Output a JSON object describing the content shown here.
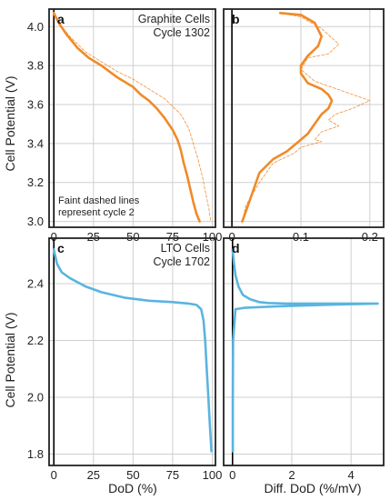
{
  "figure": {
    "ylabel_top": "Cell Potential (V)",
    "ylabel_bottom": "Cell Potential (V)",
    "xlabel_left": "DoD (%)",
    "xlabel_right": "Diff. DoD (%/mV)",
    "colors": {
      "graphite": "#f08a2a",
      "lto": "#5ab4e0",
      "grid": "#cfcfcf",
      "frame": "#222222"
    }
  },
  "chart_data": [
    {
      "panel": "a",
      "type": "line",
      "annotation_lines": [
        "Graphite Cells",
        "Cycle 1302"
      ],
      "note_lines": [
        "Faint dashed lines",
        "represent cycle 2"
      ],
      "xlim": [
        -3,
        102
      ],
      "ylim": [
        2.97,
        4.09
      ],
      "xticks": [
        0,
        25,
        50,
        75,
        100
      ],
      "yticks": [
        3.0,
        3.2,
        3.4,
        3.6,
        3.8,
        4.0
      ],
      "grid": true,
      "series": [
        {
          "style": "solid",
          "x": [
            0,
            3,
            8,
            15,
            22,
            30,
            40,
            50,
            55,
            60,
            65,
            70,
            75,
            78,
            80,
            82,
            84,
            86,
            88,
            90,
            92
          ],
          "y": [
            4.07,
            4.02,
            3.96,
            3.89,
            3.84,
            3.8,
            3.74,
            3.69,
            3.65,
            3.62,
            3.58,
            3.53,
            3.47,
            3.42,
            3.37,
            3.3,
            3.24,
            3.17,
            3.1,
            3.04,
            3.0
          ]
        },
        {
          "style": "dashed",
          "x": [
            0,
            5,
            10,
            20,
            30,
            40,
            50,
            60,
            70,
            80,
            85,
            88,
            91,
            94,
            96,
            98,
            99
          ],
          "y": [
            4.07,
            4.0,
            3.95,
            3.87,
            3.82,
            3.77,
            3.73,
            3.68,
            3.63,
            3.55,
            3.48,
            3.4,
            3.32,
            3.22,
            3.14,
            3.06,
            3.0
          ]
        }
      ]
    },
    {
      "panel": "b",
      "type": "line",
      "xlim": [
        -0.012,
        0.22
      ],
      "ylim": [
        2.97,
        4.09
      ],
      "xticks": [
        0,
        0.1,
        0.2
      ],
      "xtick_labels": [
        "0",
        "0.1",
        "0.2"
      ],
      "yticks": [
        3.0,
        3.2,
        3.4,
        3.6,
        3.8,
        4.0
      ],
      "grid": true,
      "series": [
        {
          "style": "solid",
          "x": [
            0.07,
            0.1,
            0.12,
            0.13,
            0.125,
            0.11,
            0.1,
            0.1,
            0.11,
            0.13,
            0.14,
            0.145,
            0.14,
            0.13,
            0.12,
            0.11,
            0.1,
            0.09,
            0.08,
            0.06,
            0.04,
            0.03,
            0.02,
            0.015
          ],
          "y": [
            4.07,
            4.06,
            4.02,
            3.95,
            3.9,
            3.85,
            3.8,
            3.76,
            3.71,
            3.68,
            3.65,
            3.62,
            3.58,
            3.55,
            3.5,
            3.45,
            3.42,
            3.39,
            3.36,
            3.32,
            3.25,
            3.15,
            3.05,
            3.0
          ]
        },
        {
          "style": "dashed",
          "x": [
            0.07,
            0.1,
            0.13,
            0.155,
            0.14,
            0.11,
            0.1,
            0.12,
            0.16,
            0.2,
            0.175,
            0.15,
            0.14,
            0.155,
            0.13,
            0.12,
            0.13,
            0.1,
            0.09,
            0.06,
            0.04,
            0.02,
            0.015
          ],
          "y": [
            4.07,
            4.05,
            3.99,
            3.91,
            3.86,
            3.84,
            3.78,
            3.72,
            3.67,
            3.62,
            3.58,
            3.55,
            3.52,
            3.49,
            3.46,
            3.42,
            3.41,
            3.38,
            3.35,
            3.3,
            3.2,
            3.08,
            3.0
          ]
        }
      ]
    },
    {
      "panel": "c",
      "type": "line",
      "annotation_lines": [
        "LTO Cells",
        "Cycle 1702"
      ],
      "xlim": [
        -3,
        102
      ],
      "ylim": [
        1.76,
        2.56
      ],
      "xticks": [
        0,
        25,
        50,
        75,
        100
      ],
      "yticks": [
        1.8,
        2.0,
        2.2,
        2.4
      ],
      "grid": true,
      "series": [
        {
          "style": "solid",
          "x": [
            0,
            2,
            5,
            10,
            20,
            30,
            45,
            60,
            75,
            85,
            90,
            93,
            94.5,
            95.5,
            96.5,
            97.5,
            98.5,
            99.5
          ],
          "y": [
            2.52,
            2.47,
            2.44,
            2.42,
            2.39,
            2.37,
            2.35,
            2.34,
            2.335,
            2.33,
            2.325,
            2.31,
            2.27,
            2.2,
            2.1,
            2.0,
            1.9,
            1.81
          ]
        }
      ]
    },
    {
      "panel": "d",
      "type": "line",
      "xlim": [
        -0.3,
        5.1
      ],
      "ylim": [
        1.76,
        2.56
      ],
      "xticks": [
        0,
        2,
        4
      ],
      "xtick_labels": [
        "0",
        "2",
        "4"
      ],
      "yticks": [
        1.8,
        2.0,
        2.2,
        2.4
      ],
      "grid": true,
      "series": [
        {
          "style": "solid",
          "x": [
            0.0,
            0.05,
            0.1,
            0.2,
            0.35,
            0.6,
            0.9,
            1.2,
            1.8,
            2.5,
            3.5,
            4.5,
            4.9,
            3.0,
            1.5,
            0.4,
            0.1,
            0.02,
            0.01,
            0.01
          ],
          "y": [
            2.52,
            2.47,
            2.43,
            2.39,
            2.36,
            2.345,
            2.335,
            2.332,
            2.33,
            2.33,
            2.33,
            2.33,
            2.33,
            2.325,
            2.32,
            2.315,
            2.31,
            2.2,
            2.0,
            1.81
          ]
        }
      ]
    }
  ]
}
